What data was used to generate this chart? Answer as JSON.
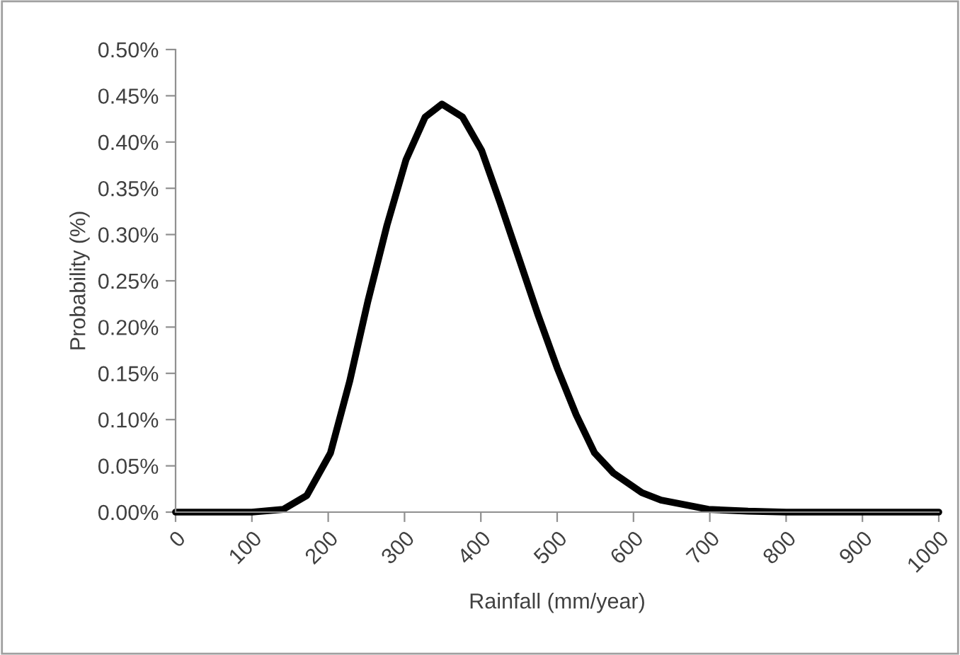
{
  "chart_data": {
    "type": "line",
    "xlabel": "Rainfall (mm/year)",
    "ylabel": "Probability (%)",
    "xlim": [
      0,
      1000
    ],
    "xticks": [
      0,
      100,
      200,
      300,
      400,
      500,
      600,
      700,
      800,
      900,
      1000
    ],
    "ylim": [
      0,
      0.5
    ],
    "yticks": [
      {
        "value": 0,
        "label": "0.00%"
      },
      {
        "value": 0.05,
        "label": "0.05%"
      },
      {
        "value": 0.1,
        "label": "0.10%"
      },
      {
        "value": 0.15,
        "label": "0.15%"
      },
      {
        "value": 0.2,
        "label": "0.20%"
      },
      {
        "value": 0.25,
        "label": "0.25%"
      },
      {
        "value": 0.3,
        "label": "0.30%"
      },
      {
        "value": 0.35,
        "label": "0.35%"
      },
      {
        "value": 0.4,
        "label": "0.40%"
      },
      {
        "value": 0.45,
        "label": "0.45%"
      },
      {
        "value": 0.5,
        "label": "0.50%"
      }
    ],
    "grid": false,
    "legend": false,
    "marker": "none",
    "line_style": "solid",
    "series": [
      {
        "color": "#000000",
        "x": [
          0,
          50,
          100,
          141,
          172,
          203,
          228,
          252,
          277,
          302,
          327,
          349,
          376,
          401,
          425,
          450,
          475,
          500,
          525,
          549,
          574,
          611,
          636,
          698,
          750,
          800,
          900,
          1000
        ],
        "values": [
          0,
          0,
          0,
          0.003,
          0.018,
          0.064,
          0.141,
          0.228,
          0.31,
          0.381,
          0.427,
          0.441,
          0.427,
          0.391,
          0.335,
          0.274,
          0.213,
          0.156,
          0.105,
          0.064,
          0.042,
          0.021,
          0.013,
          0.003,
          0.001,
          0,
          0,
          0
        ]
      }
    ]
  }
}
